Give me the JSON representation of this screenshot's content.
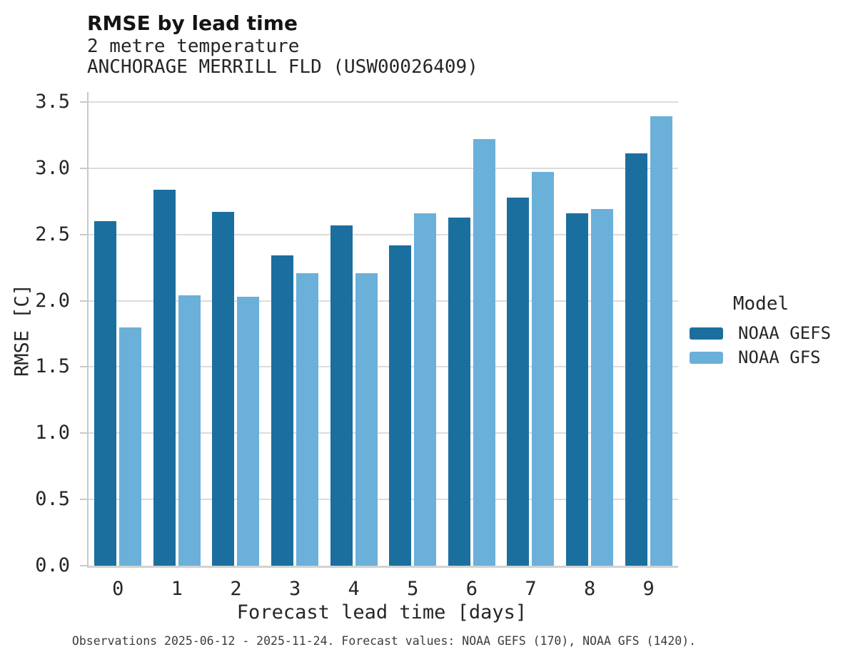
{
  "header": {
    "title": "RMSE by lead time",
    "subtitle_lines": [
      "2 metre temperature",
      "ANCHORAGE MERRILL FLD (USW00026409)"
    ]
  },
  "chart_data": {
    "type": "bar",
    "title": "RMSE by lead time",
    "subtitle": "2 metre temperature — ANCHORAGE MERRILL FLD (USW00026409)",
    "categories": [
      "0",
      "1",
      "2",
      "3",
      "4",
      "5",
      "6",
      "7",
      "8",
      "9"
    ],
    "series": [
      {
        "name": "NOAA GEFS",
        "color": "#1b6f9e",
        "values": [
          2.6,
          2.84,
          2.67,
          2.34,
          2.57,
          2.42,
          2.63,
          2.78,
          2.66,
          3.11
        ]
      },
      {
        "name": "NOAA GFS",
        "color": "#6bb0d9",
        "values": [
          1.8,
          2.04,
          2.03,
          2.21,
          2.21,
          2.66,
          3.22,
          2.97,
          2.69,
          3.39
        ]
      }
    ],
    "xlabel": "Forecast lead time [days]",
    "ylabel": "RMSE [C]",
    "ylim": [
      0,
      3.5
    ],
    "ytick_step": 0.5,
    "ytick_labels": [
      "0.0",
      "0.5",
      "1.0",
      "1.5",
      "2.0",
      "2.5",
      "3.0",
      "3.5"
    ],
    "grid": true,
    "legend_title": "Model",
    "legend_position": "right"
  },
  "legend": {
    "title": "Model",
    "items": [
      {
        "label": "NOAA GEFS",
        "color": "#1b6f9e"
      },
      {
        "label": "NOAA GFS",
        "color": "#6bb0d9"
      }
    ]
  },
  "footer": {
    "note": "Observations 2025-06-12 - 2025-11-24. Forecast values: NOAA GEFS (170), NOAA GFS (1420)."
  },
  "colors": {
    "gridline": "#dcdcdc",
    "spine": "#c9c9c9",
    "text": "#262626",
    "footer_text": "#3c3c3c",
    "background": "#ffffff"
  }
}
